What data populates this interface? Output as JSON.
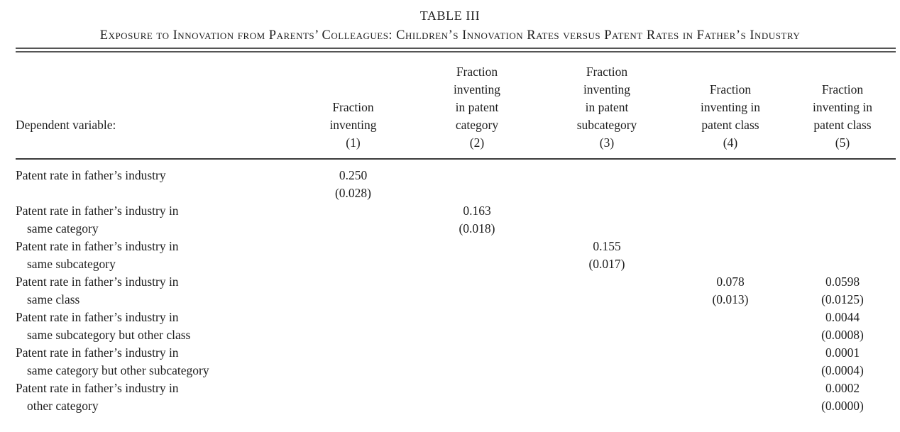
{
  "table": {
    "title": "TABLE III",
    "subtitle": "Exposure to Innovation from Parents’ Colleagues: Children’s Innovation Rates versus Patent Rates in Father’s Industry",
    "header": {
      "dependent_variable_label": "Dependent variable:",
      "columns": [
        {
          "lines": [
            "Fraction",
            "inventing"
          ],
          "number": "(1)"
        },
        {
          "lines": [
            "Fraction",
            "inventing",
            "in patent",
            "category"
          ],
          "number": "(2)"
        },
        {
          "lines": [
            "Fraction",
            "inventing",
            "in patent",
            "subcategory"
          ],
          "number": "(3)"
        },
        {
          "lines": [
            "Fraction",
            "inventing in",
            "patent class"
          ],
          "number": "(4)"
        },
        {
          "lines": [
            "Fraction",
            "inventing in",
            "patent class"
          ],
          "number": "(5)"
        }
      ]
    },
    "rows": [
      {
        "label_line1": "Patent rate in father’s industry",
        "label_line2": "",
        "cells": [
          {
            "coef": "0.250",
            "se": "(0.028)"
          },
          {
            "coef": "",
            "se": ""
          },
          {
            "coef": "",
            "se": ""
          },
          {
            "coef": "",
            "se": ""
          },
          {
            "coef": "",
            "se": ""
          }
        ]
      },
      {
        "label_line1": "Patent rate in father’s industry in",
        "label_line2": "same category",
        "cells": [
          {
            "coef": "",
            "se": ""
          },
          {
            "coef": "0.163",
            "se": "(0.018)"
          },
          {
            "coef": "",
            "se": ""
          },
          {
            "coef": "",
            "se": ""
          },
          {
            "coef": "",
            "se": ""
          }
        ]
      },
      {
        "label_line1": "Patent rate in father’s industry in",
        "label_line2": "same subcategory",
        "cells": [
          {
            "coef": "",
            "se": ""
          },
          {
            "coef": "",
            "se": ""
          },
          {
            "coef": "0.155",
            "se": "(0.017)"
          },
          {
            "coef": "",
            "se": ""
          },
          {
            "coef": "",
            "se": ""
          }
        ]
      },
      {
        "label_line1": "Patent rate in father’s industry in",
        "label_line2": "same class",
        "cells": [
          {
            "coef": "",
            "se": ""
          },
          {
            "coef": "",
            "se": ""
          },
          {
            "coef": "",
            "se": ""
          },
          {
            "coef": "0.078",
            "se": "(0.013)"
          },
          {
            "coef": "0.0598",
            "se": "(0.0125)"
          }
        ]
      },
      {
        "label_line1": "Patent rate in father’s industry in",
        "label_line2": "same subcategory but other class",
        "cells": [
          {
            "coef": "",
            "se": ""
          },
          {
            "coef": "",
            "se": ""
          },
          {
            "coef": "",
            "se": ""
          },
          {
            "coef": "",
            "se": ""
          },
          {
            "coef": "0.0044",
            "se": "(0.0008)"
          }
        ]
      },
      {
        "label_line1": "Patent rate in father’s industry in",
        "label_line2": "same category but other subcategory",
        "cells": [
          {
            "coef": "",
            "se": ""
          },
          {
            "coef": "",
            "se": ""
          },
          {
            "coef": "",
            "se": ""
          },
          {
            "coef": "",
            "se": ""
          },
          {
            "coef": "0.0001",
            "se": "(0.0004)"
          }
        ]
      },
      {
        "label_line1": "Patent rate in father’s industry in",
        "label_line2": "other category",
        "cells": [
          {
            "coef": "",
            "se": ""
          },
          {
            "coef": "",
            "se": ""
          },
          {
            "coef": "",
            "se": ""
          },
          {
            "coef": "",
            "se": ""
          },
          {
            "coef": "0.0002",
            "se": "(0.0000)"
          }
        ]
      }
    ]
  },
  "colors": {
    "text": "#1e1e1e",
    "rule": "#555555",
    "header_rule": "#3a3a3a",
    "background": "#ffffff"
  }
}
